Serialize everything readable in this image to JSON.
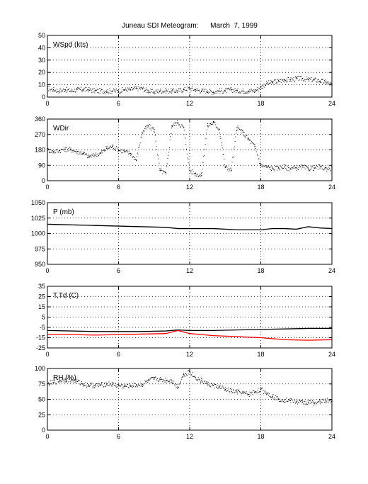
{
  "title": "Juneau SDI Meteogram:      March  7, 1999",
  "chart_data": [
    {
      "id": "wspd",
      "type": "scatter",
      "label": "WSpd (kts)",
      "xlim": [
        0,
        24
      ],
      "xticks": [
        0,
        6,
        12,
        18,
        24
      ],
      "ylim": [
        0,
        50
      ],
      "yticks": [
        0,
        10,
        20,
        30,
        40,
        50
      ],
      "grid": true,
      "series": [
        {
          "color": "#000000",
          "x": [
            0,
            0.5,
            1,
            1.5,
            2,
            2.5,
            3,
            3.5,
            4,
            4.5,
            5,
            5.5,
            6,
            6.5,
            7,
            7.5,
            8,
            8.5,
            9,
            9.5,
            10,
            10.5,
            11,
            11.5,
            12,
            12.5,
            13,
            13.5,
            14,
            14.5,
            15,
            15.5,
            16,
            16.5,
            17,
            17.5,
            18,
            18.5,
            19,
            19.5,
            20,
            20.5,
            21,
            21.5,
            22,
            22.5,
            23,
            23.5,
            24
          ],
          "y": [
            7,
            6,
            5,
            6,
            5,
            6,
            6,
            6,
            5,
            5,
            5,
            5,
            5,
            6,
            6,
            7,
            7,
            5,
            4,
            5,
            5,
            5,
            5,
            6,
            7,
            6,
            5,
            5,
            4,
            5,
            5,
            6,
            5,
            5,
            5,
            5,
            8,
            11,
            12,
            13,
            14,
            14,
            15,
            15,
            14,
            14,
            13,
            12,
            10
          ]
        }
      ]
    },
    {
      "id": "wdir",
      "type": "scatter",
      "label": "WDir",
      "xlim": [
        0,
        24
      ],
      "xticks": [
        0,
        6,
        12,
        18,
        24
      ],
      "ylim": [
        0,
        360
      ],
      "yticks": [
        0,
        90,
        180,
        270,
        360
      ],
      "grid": true,
      "series": [
        {
          "color": "#000000",
          "x": [
            0,
            0.5,
            1,
            1.5,
            2,
            2.5,
            3,
            3.5,
            4,
            4.5,
            5,
            5.5,
            6,
            6.5,
            7,
            7.5,
            8,
            8.5,
            9,
            9.5,
            10,
            10.5,
            11,
            11.5,
            12,
            12.5,
            13,
            13.5,
            14,
            14.5,
            15,
            15.5,
            16,
            16.5,
            17,
            17.5,
            18,
            18.5,
            19,
            19.5,
            20,
            20.5,
            21,
            21.5,
            22,
            22.5,
            23,
            23.5,
            24
          ],
          "y": [
            180,
            170,
            175,
            185,
            180,
            170,
            160,
            140,
            150,
            160,
            190,
            200,
            180,
            170,
            160,
            120,
            280,
            320,
            300,
            60,
            40,
            320,
            340,
            310,
            60,
            40,
            30,
            320,
            340,
            300,
            80,
            60,
            310,
            280,
            240,
            200,
            90,
            80,
            70,
            75,
            80,
            70,
            75,
            80,
            70,
            75,
            80,
            70,
            70
          ]
        }
      ]
    },
    {
      "id": "pressure",
      "type": "line",
      "label": "P (mb)",
      "xlim": [
        0,
        24
      ],
      "xticks": [
        0,
        6,
        12,
        18,
        24
      ],
      "ylim": [
        950,
        1050
      ],
      "yticks": [
        950,
        975,
        1000,
        1025,
        1050
      ],
      "grid": true,
      "series": [
        {
          "color": "#000000",
          "x": [
            0,
            2,
            4,
            6,
            8,
            10,
            11,
            12,
            14,
            16,
            18,
            19,
            20,
            21,
            22,
            23,
            24
          ],
          "y": [
            1015,
            1014,
            1013,
            1012,
            1011,
            1010,
            1008,
            1008,
            1008,
            1006,
            1006,
            1008,
            1008,
            1007,
            1011,
            1009,
            1008
          ]
        }
      ]
    },
    {
      "id": "temp",
      "type": "line",
      "label": "T,Td (C)",
      "xlim": [
        0,
        24
      ],
      "xticks": [
        0,
        6,
        12,
        18,
        24
      ],
      "ylim": [
        -25,
        35
      ],
      "yticks": [
        -25,
        -15,
        -5,
        5,
        15,
        25,
        35
      ],
      "grid": true,
      "series": [
        {
          "color": "#000000",
          "x": [
            0,
            2,
            4,
            6,
            8,
            10,
            11,
            12,
            14,
            16,
            18,
            20,
            22,
            24
          ],
          "y": [
            -8,
            -8.5,
            -9,
            -9,
            -9,
            -8.5,
            -7.5,
            -8,
            -8,
            -7.5,
            -7,
            -6.5,
            -6,
            -6
          ]
        },
        {
          "color": "#ff0000",
          "x": [
            0,
            2,
            4,
            6,
            8,
            10,
            11,
            12,
            14,
            16,
            18,
            20,
            22,
            24
          ],
          "y": [
            -12,
            -12,
            -12.5,
            -12,
            -11.5,
            -11,
            -8,
            -11,
            -13,
            -14,
            -15,
            -17,
            -17.5,
            -17
          ]
        }
      ]
    },
    {
      "id": "rh",
      "type": "scatter",
      "label": "RH (%)",
      "xlim": [
        0,
        24
      ],
      "xticks": [
        0,
        6,
        12,
        18,
        24
      ],
      "ylim": [
        0,
        100
      ],
      "yticks": [
        0,
        25,
        50,
        75,
        100
      ],
      "grid": true,
      "series": [
        {
          "color": "#000000",
          "x": [
            0,
            0.5,
            1,
            1.5,
            2,
            2.5,
            3,
            3.5,
            4,
            4.5,
            5,
            5.5,
            6,
            6.5,
            7,
            7.5,
            8,
            8.5,
            9,
            9.5,
            10,
            10.5,
            11,
            11.5,
            12,
            12.5,
            13,
            13.5,
            14,
            14.5,
            15,
            15.5,
            16,
            16.5,
            17,
            17.5,
            18,
            18.5,
            19,
            19.5,
            20,
            20.5,
            21,
            21.5,
            22,
            22.5,
            23,
            23.5,
            24
          ],
          "y": [
            75,
            77,
            80,
            82,
            81,
            79,
            75,
            73,
            72,
            73,
            75,
            74,
            72,
            71,
            72,
            73,
            74,
            80,
            83,
            82,
            81,
            80,
            70,
            90,
            95,
            85,
            80,
            75,
            72,
            70,
            66,
            63,
            62,
            60,
            58,
            62,
            66,
            60,
            55,
            50,
            49,
            48,
            46,
            45,
            45,
            44,
            46,
            48,
            47
          ]
        }
      ]
    }
  ]
}
